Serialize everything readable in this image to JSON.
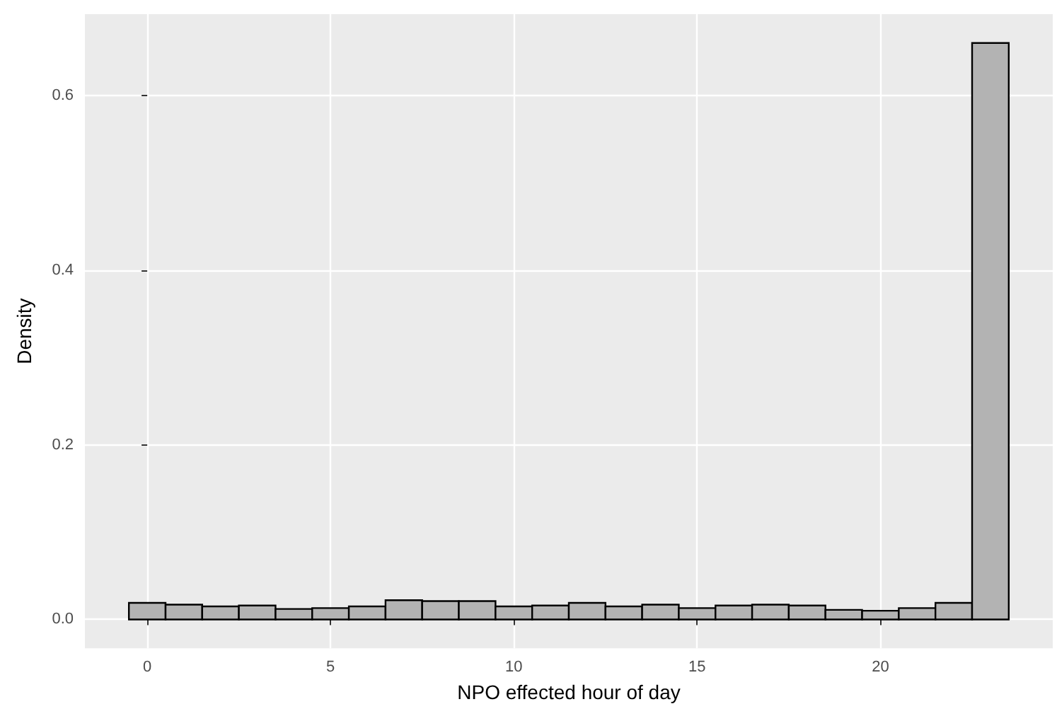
{
  "chart_data": {
    "type": "histogram",
    "xlabel": "NPO effected hour of day",
    "ylabel": "Density",
    "bins": [
      -0.5,
      0.5,
      1.5,
      2.5,
      3.5,
      4.5,
      5.5,
      6.5,
      7.5,
      8.5,
      9.5,
      10.5,
      11.5,
      12.5,
      13.5,
      14.5,
      15.5,
      16.5,
      17.5,
      18.5,
      19.5,
      20.5,
      21.5,
      22.5,
      23.5
    ],
    "values": [
      0.019,
      0.017,
      0.015,
      0.016,
      0.012,
      0.013,
      0.015,
      0.022,
      0.021,
      0.021,
      0.015,
      0.016,
      0.019,
      0.015,
      0.017,
      0.013,
      0.016,
      0.017,
      0.016,
      0.011,
      0.01,
      0.013,
      0.019,
      0.66
    ],
    "color": "#b3b3b3",
    "xlim": [
      -1.7,
      24.7
    ],
    "xticks": [
      0,
      5,
      10,
      15,
      20
    ],
    "ylim": [
      -0.033,
      0.693
    ],
    "yticks": [
      {
        "value": 0,
        "label": "0.0"
      },
      {
        "value": 0.2,
        "label": "0.2"
      },
      {
        "value": 0.4,
        "label": "0.4"
      },
      {
        "value": 0.6,
        "label": "0.6"
      }
    ],
    "grid": true
  }
}
